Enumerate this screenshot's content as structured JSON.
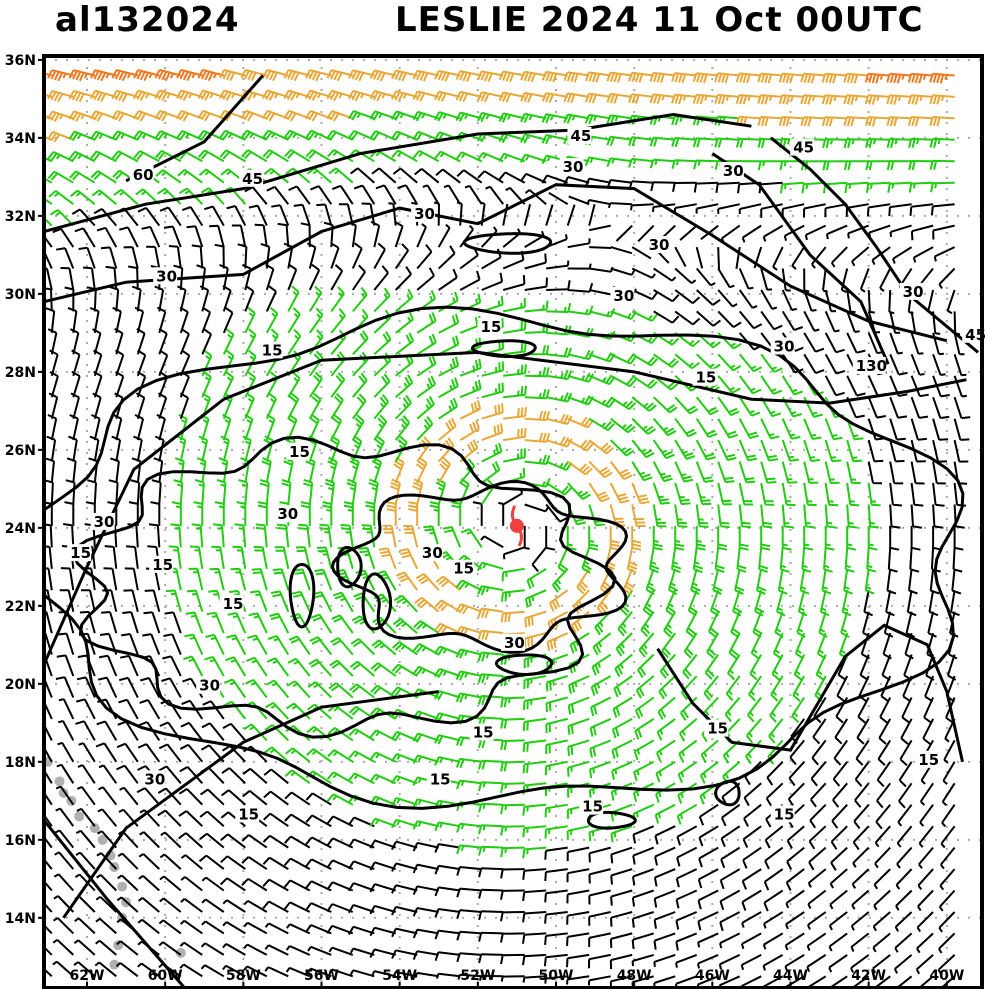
{
  "header": {
    "storm_id": "al132024",
    "storm_info": "LESLIE 2024 11 Oct 00UTC"
  },
  "map": {
    "lon_range": [
      -63.1,
      -39.1
    ],
    "lat_range": [
      12.2,
      36.1
    ],
    "lat_ticks": [
      {
        "value": 36,
        "label": "36N"
      },
      {
        "value": 34,
        "label": "34N"
      },
      {
        "value": 32,
        "label": "32N"
      },
      {
        "value": 30,
        "label": "30N"
      },
      {
        "value": 28,
        "label": "28N"
      },
      {
        "value": 26,
        "label": "26N"
      },
      {
        "value": 24,
        "label": "24N"
      },
      {
        "value": 22,
        "label": "22N"
      },
      {
        "value": 20,
        "label": "20N"
      },
      {
        "value": 18,
        "label": "18N"
      },
      {
        "value": 16,
        "label": "16N"
      },
      {
        "value": 14,
        "label": "14N"
      }
    ],
    "lon_ticks": [
      {
        "value": -62,
        "label": "62W"
      },
      {
        "value": -60,
        "label": "60W"
      },
      {
        "value": -58,
        "label": "58W"
      },
      {
        "value": -56,
        "label": "56W"
      },
      {
        "value": -54,
        "label": "54W"
      },
      {
        "value": -52,
        "label": "52W"
      },
      {
        "value": -50,
        "label": "50W"
      },
      {
        "value": -48,
        "label": "48W"
      },
      {
        "value": -46,
        "label": "46W"
      },
      {
        "value": -44,
        "label": "44W"
      },
      {
        "value": -42,
        "label": "42W"
      },
      {
        "value": -40,
        "label": "40W"
      }
    ],
    "grid": true,
    "storm_center": {
      "lon": -51.0,
      "lat": 24.05
    },
    "colors": {
      "calm": "#000000",
      "tropical_storm": "#22cc11",
      "strong": "#e8a838",
      "very_strong": "#f07820",
      "extreme": "#e83030",
      "storm_marker": "#f04040",
      "coast": "#b0b0b0"
    },
    "contour_labels": [
      {
        "text": "60",
        "lon": -60.6,
        "lat": 33.0
      },
      {
        "text": "45",
        "lon": -57.8,
        "lat": 32.9
      },
      {
        "text": "30",
        "lon": -53.4,
        "lat": 32.0
      },
      {
        "text": "30",
        "lon": -60.0,
        "lat": 30.4
      },
      {
        "text": "45",
        "lon": -49.4,
        "lat": 34.0
      },
      {
        "text": "30",
        "lon": -49.6,
        "lat": 33.2
      },
      {
        "text": "30",
        "lon": -45.5,
        "lat": 33.1
      },
      {
        "text": "45",
        "lon": -43.7,
        "lat": 33.7
      },
      {
        "text": "30",
        "lon": -47.4,
        "lat": 31.2
      },
      {
        "text": "30",
        "lon": -48.3,
        "lat": 29.9
      },
      {
        "text": "30",
        "lon": -40.9,
        "lat": 30.0
      },
      {
        "text": "45",
        "lon": -39.3,
        "lat": 28.9
      },
      {
        "text": "30",
        "lon": -44.2,
        "lat": 28.6
      },
      {
        "text": "130",
        "lon": -42.1,
        "lat": 28.1
      },
      {
        "text": "15",
        "lon": -51.7,
        "lat": 29.1
      },
      {
        "text": "15",
        "lon": -57.3,
        "lat": 28.5
      },
      {
        "text": "15",
        "lon": -46.2,
        "lat": 27.8
      },
      {
        "text": "15",
        "lon": -56.6,
        "lat": 25.9
      },
      {
        "text": "30",
        "lon": -56.9,
        "lat": 24.3
      },
      {
        "text": "30",
        "lon": -61.6,
        "lat": 24.1
      },
      {
        "text": "15",
        "lon": -62.2,
        "lat": 23.3
      },
      {
        "text": "15",
        "lon": -60.1,
        "lat": 23.0
      },
      {
        "text": "30",
        "lon": -53.2,
        "lat": 23.3
      },
      {
        "text": "15",
        "lon": -52.4,
        "lat": 22.9
      },
      {
        "text": "15",
        "lon": -58.3,
        "lat": 22.0
      },
      {
        "text": "30",
        "lon": -51.1,
        "lat": 21.0
      },
      {
        "text": "30",
        "lon": -58.9,
        "lat": 19.9
      },
      {
        "text": "15",
        "lon": -51.9,
        "lat": 18.7
      },
      {
        "text": "15",
        "lon": -45.9,
        "lat": 18.8
      },
      {
        "text": "15",
        "lon": -40.5,
        "lat": 18.0
      },
      {
        "text": "30",
        "lon": -60.3,
        "lat": 17.5
      },
      {
        "text": "15",
        "lon": -53.0,
        "lat": 17.5
      },
      {
        "text": "15",
        "lon": -49.1,
        "lat": 16.8
      },
      {
        "text": "15",
        "lon": -57.9,
        "lat": 16.6
      },
      {
        "text": "15",
        "lon": -44.2,
        "lat": 16.6
      }
    ]
  }
}
